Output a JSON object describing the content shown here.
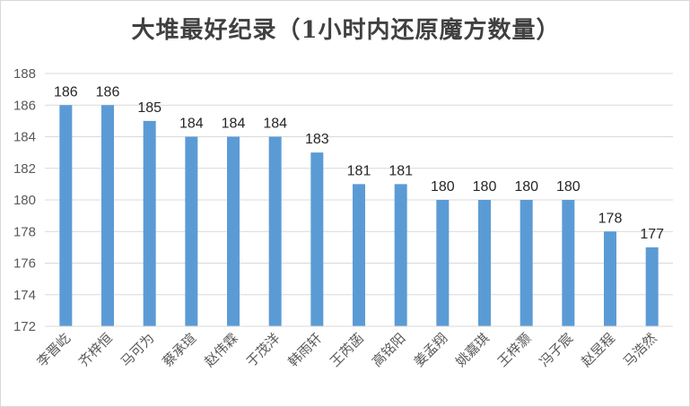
{
  "chart_data": {
    "type": "bar",
    "title": "大堆最好纪录（1小时内还原魔方数量）",
    "xlabel": "",
    "ylabel": "",
    "ylim": [
      172,
      188
    ],
    "yticks": [
      172,
      174,
      176,
      178,
      180,
      182,
      184,
      186,
      188
    ],
    "grid": true,
    "bar_color": "#5b9bd5",
    "categories": [
      "李晋屹",
      "齐梓恒",
      "马可为",
      "蔡承瑄",
      "赵伟霖",
      "于茂洋",
      "韩雨轩",
      "王芮菡",
      "高铭阳",
      "姜孟翔",
      "姚嘉琪",
      "王梓灏",
      "冯子宸",
      "赵昱程",
      "马浩然"
    ],
    "values": [
      186,
      186,
      185,
      184,
      184,
      184,
      183,
      181,
      181,
      180,
      180,
      180,
      180,
      178,
      177
    ]
  }
}
